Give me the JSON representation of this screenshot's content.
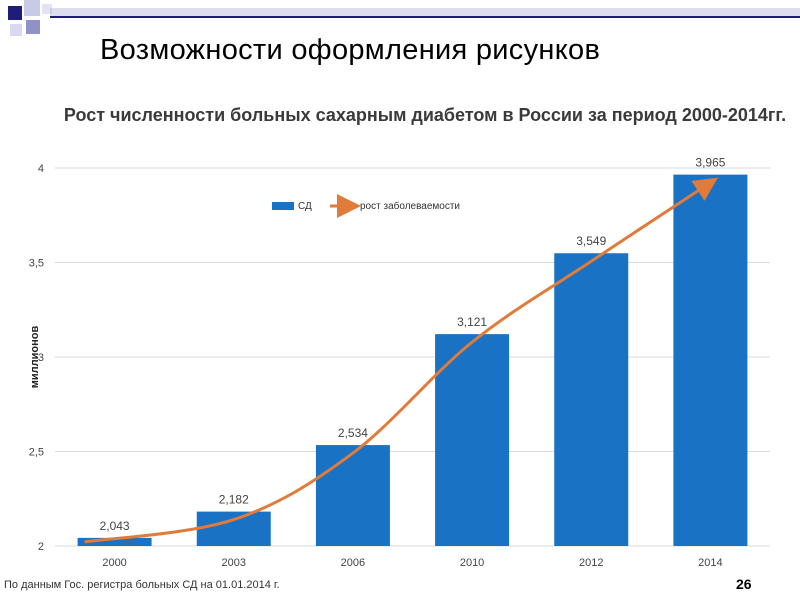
{
  "slide": {
    "title": "Возможности оформления рисунков",
    "page_number": "26",
    "footnote": "По данным Гос. регистра больных СД на 01.01.2014 г."
  },
  "colors": {
    "bar": "#1a72c4",
    "trend": "#e07b39",
    "grid": "#d9d9d9",
    "title_accent": "#1e1e7a"
  },
  "chart_data": {
    "type": "bar",
    "title": "Рост численности больных сахарным диабетом в России за период 2000-2014гг.",
    "ylabel": "миллионов",
    "xlabel": "",
    "ylim": [
      2,
      4
    ],
    "yticks": [
      "2",
      "2,5",
      "3",
      "3,5",
      "4"
    ],
    "ytick_values": [
      2,
      2.5,
      3,
      3.5,
      4
    ],
    "categories": [
      "2000",
      "2003",
      "2006",
      "2010",
      "2012",
      "2014"
    ],
    "series": [
      {
        "name": "СД",
        "values": [
          2.043,
          2.182,
          2.534,
          3.121,
          3.549,
          3.965
        ],
        "labels": [
          "2,043",
          "2,182",
          "2,534",
          "3,121",
          "3,549",
          "3,965"
        ]
      }
    ],
    "trend_label": "рост заболеваемости",
    "legend_position": "top-left",
    "grid": true
  }
}
